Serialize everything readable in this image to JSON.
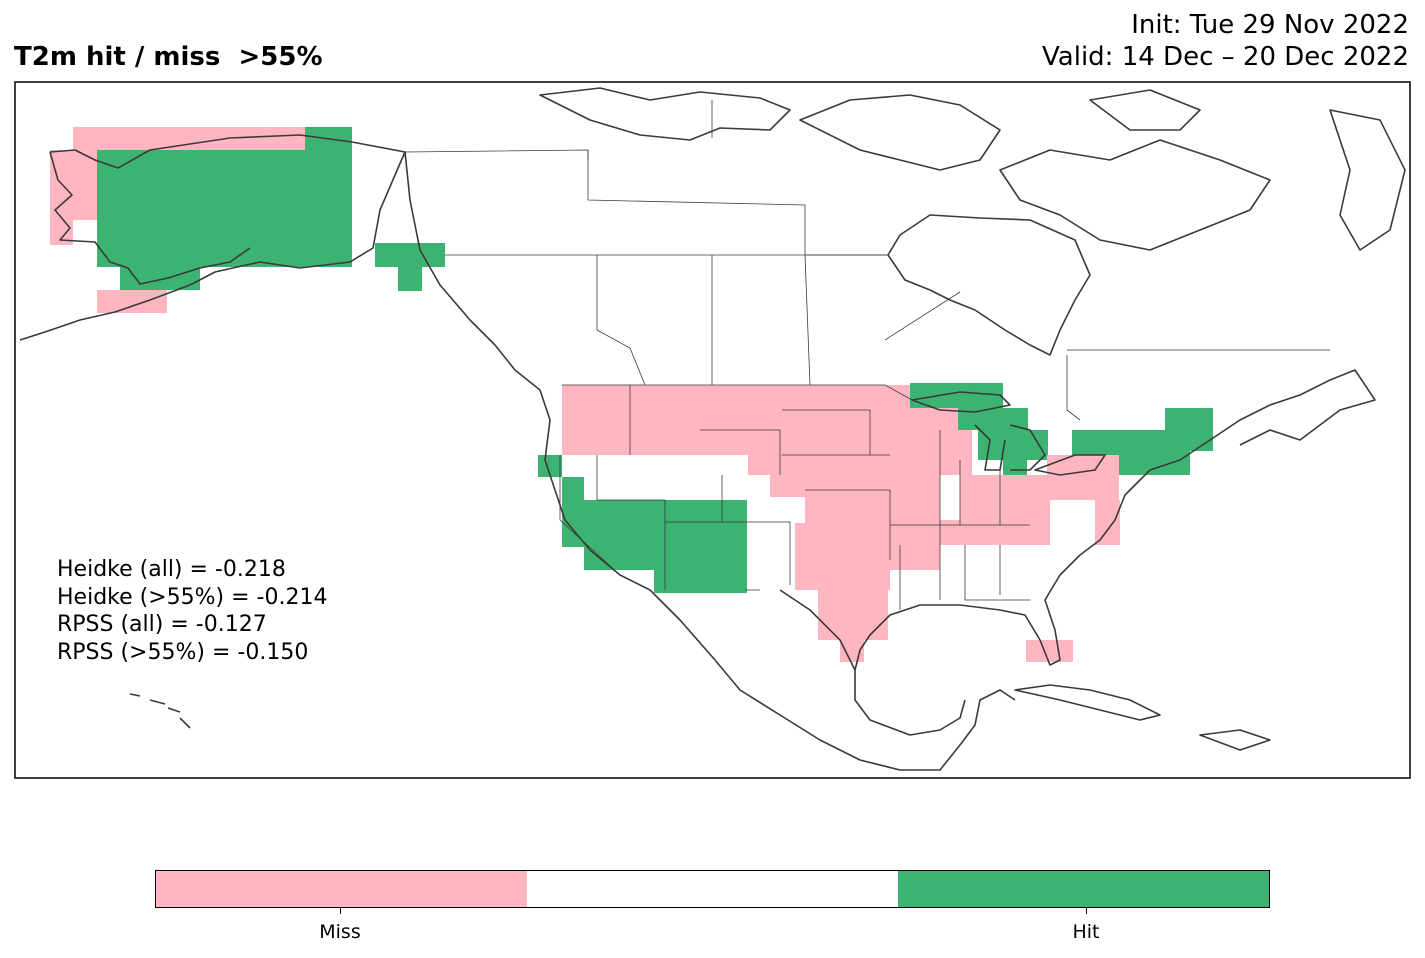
{
  "header": {
    "title": "T2m hit / miss  >55%",
    "init": "Init: Tue 29 Nov 2022",
    "valid": "Valid: 14 Dec – 20 Dec 2022"
  },
  "scores": [
    "Heidke (all) = -0.218",
    "Heidke (>55%) = -0.214",
    "RPSS (all) = -0.127",
    "RPSS (>55%) = -0.150"
  ],
  "colors": {
    "miss": "#ffb6c1",
    "neutral": "#ffffff",
    "hit": "#3cb371",
    "coast": "#3a3a3a"
  },
  "legend": {
    "miss_label": "Miss",
    "hit_label": "Hit"
  },
  "map_regions": [
    {
      "name": "alaska",
      "outcome": "hit"
    },
    {
      "name": "alaska-west-coast",
      "outcome": "miss"
    },
    {
      "name": "alaska-panhandle",
      "outcome": "hit"
    },
    {
      "name": "pacific-northwest",
      "outcome": "miss"
    },
    {
      "name": "northern-rockies",
      "outcome": "miss"
    },
    {
      "name": "northern-plains",
      "outcome": "miss"
    },
    {
      "name": "upper-midwest",
      "outcome": "miss"
    },
    {
      "name": "lake-superior",
      "outcome": "hit"
    },
    {
      "name": "great-lakes",
      "outcome": "hit"
    },
    {
      "name": "northeast",
      "outcome": "hit"
    },
    {
      "name": "mid-atlantic",
      "outcome": "miss"
    },
    {
      "name": "ohio-valley",
      "outcome": "miss"
    },
    {
      "name": "central-plains",
      "outcome": "miss"
    },
    {
      "name": "texas",
      "outcome": "miss"
    },
    {
      "name": "california",
      "outcome": "hit"
    },
    {
      "name": "southwest",
      "outcome": "hit"
    },
    {
      "name": "great-basin",
      "outcome": "neutral"
    },
    {
      "name": "southeast",
      "outcome": "neutral"
    },
    {
      "name": "south-florida",
      "outcome": "miss"
    }
  ]
}
